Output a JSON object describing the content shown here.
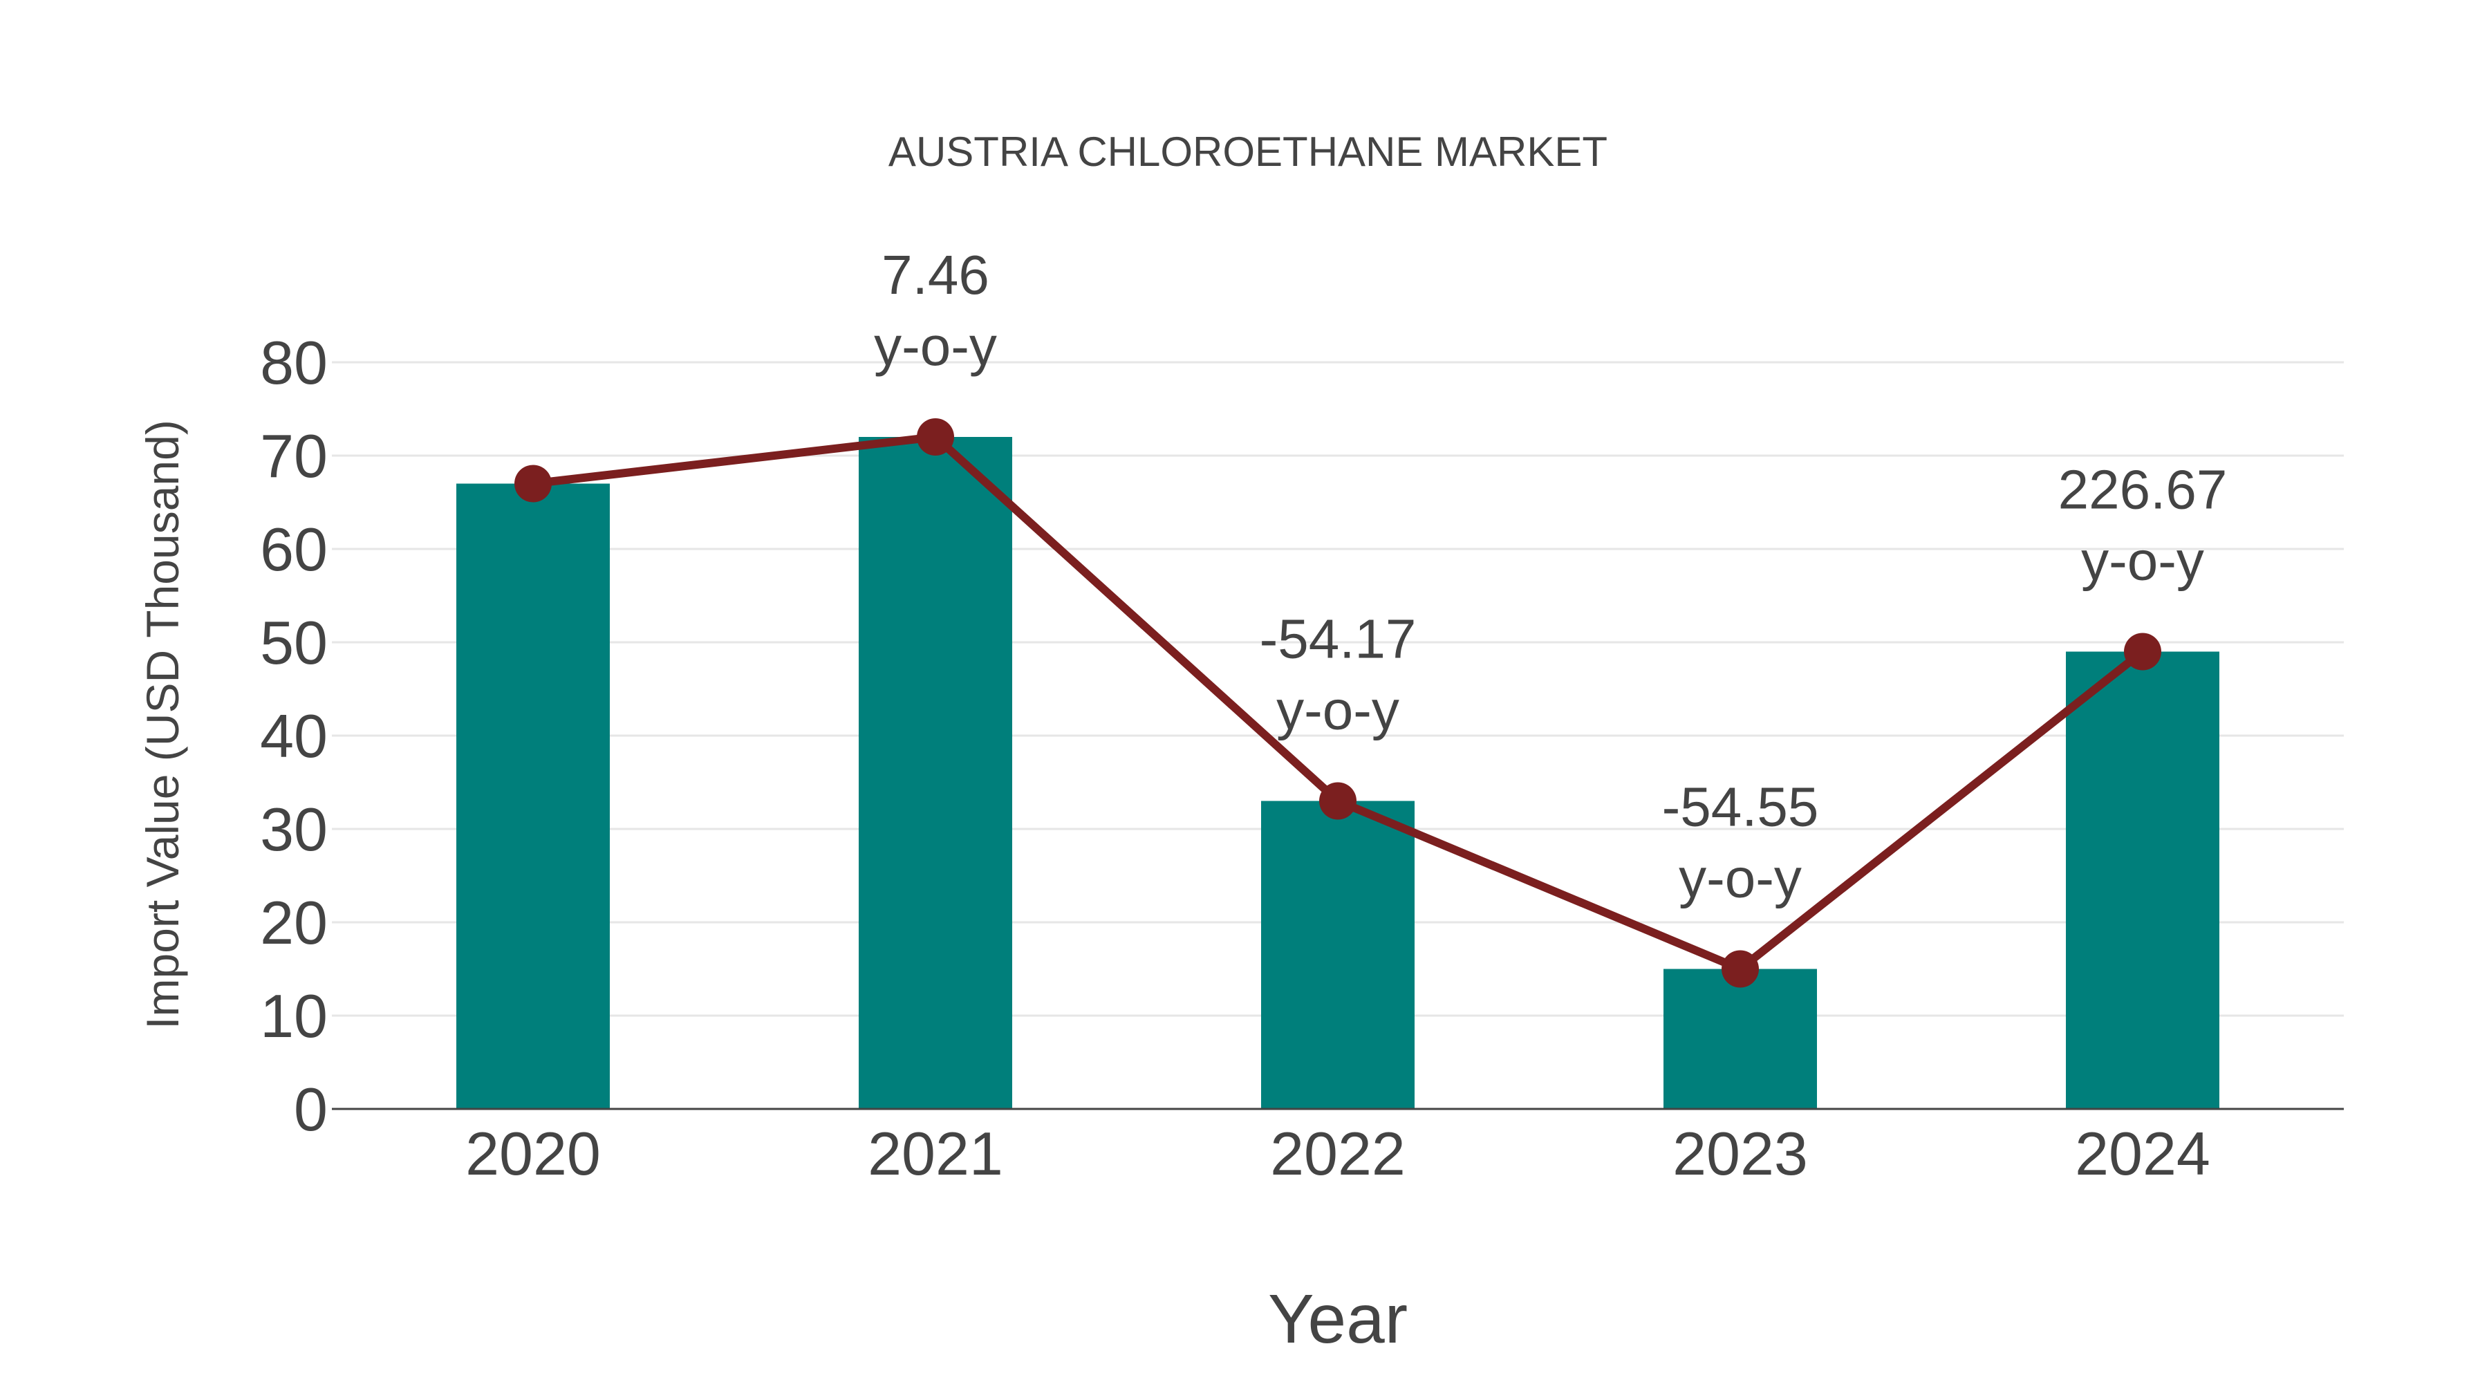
{
  "chart_data": {
    "type": "bar+line",
    "title": "AUSTRIA CHLOROETHANE MARKET",
    "xlabel": "Year",
    "ylabel": "Import Value (USD Thousand)",
    "categories": [
      "2020",
      "2021",
      "2022",
      "2023",
      "2024"
    ],
    "series": [
      {
        "name": "Import Value",
        "type": "bar",
        "values": [
          67,
          72,
          33,
          15,
          49
        ],
        "color": "#007F7B"
      },
      {
        "name": "Import Value (trend)",
        "type": "line",
        "values": [
          67,
          72,
          33,
          15,
          49
        ],
        "color": "#7B1F1F"
      }
    ],
    "annotations": [
      {
        "category": "2021",
        "value": "7.46",
        "suffix": "y-o-y"
      },
      {
        "category": "2022",
        "value": "-54.17",
        "suffix": "y-o-y"
      },
      {
        "category": "2023",
        "value": "-54.55",
        "suffix": "y-o-y"
      },
      {
        "category": "2024",
        "value": "226.67",
        "suffix": "y-o-y"
      }
    ],
    "yticks": [
      "0",
      "10",
      "20",
      "30",
      "40",
      "50",
      "60",
      "70",
      "80"
    ],
    "ylim": [
      0,
      80
    ],
    "grid": true,
    "legend": "none"
  },
  "colors": {
    "bar": "#007F7B",
    "line": "#7B1F1F",
    "grid": "#E6E6E6",
    "axis": "#444444",
    "text": "#444444"
  }
}
